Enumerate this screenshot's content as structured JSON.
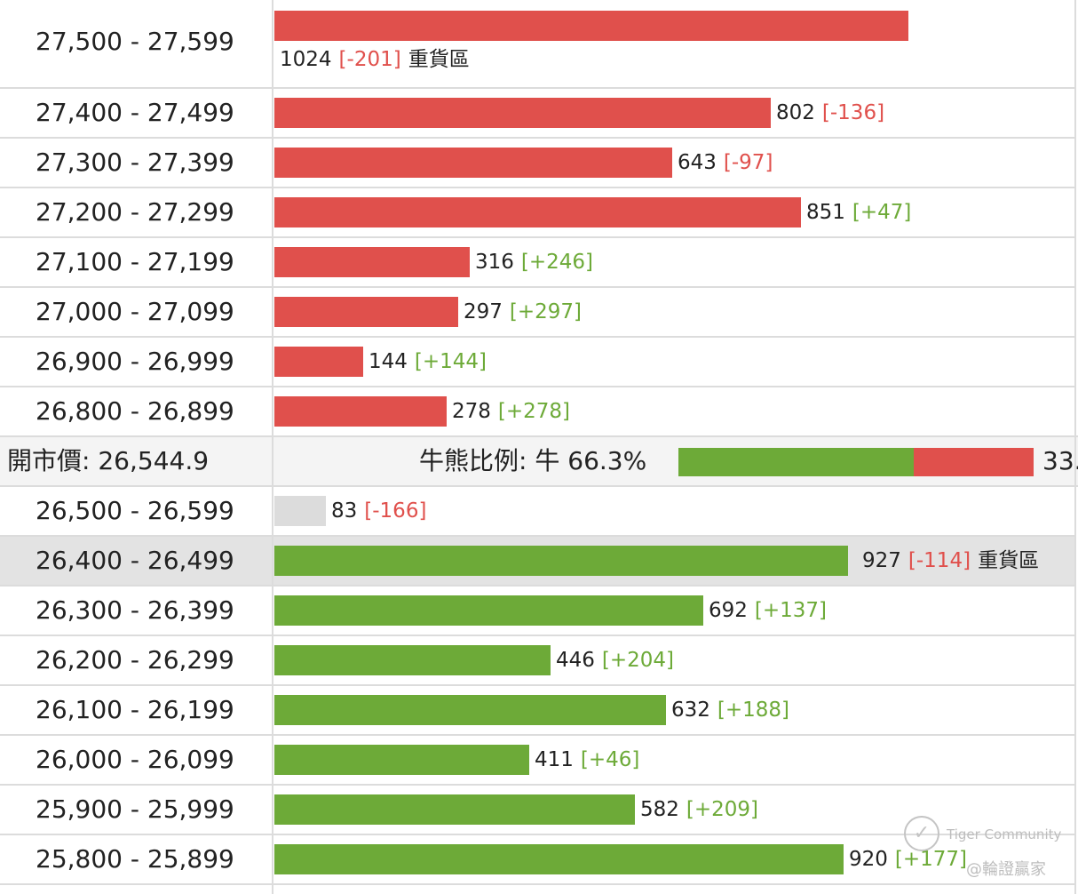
{
  "chart_data": {
    "type": "bar",
    "orientation": "horizontal",
    "upper_rows": [
      {
        "range": "27,500 - 27,599",
        "count": 1024,
        "change": "[-201]",
        "change_sign": "neg",
        "tag": "重貨區"
      },
      {
        "range": "27,400 - 27,499",
        "count": 802,
        "change": "[-136]",
        "change_sign": "neg",
        "tag": ""
      },
      {
        "range": "27,300 - 27,399",
        "count": 643,
        "change": "[-97]",
        "change_sign": "neg",
        "tag": ""
      },
      {
        "range": "27,200 - 27,299",
        "count": 851,
        "change": "[+47]",
        "change_sign": "pos",
        "tag": ""
      },
      {
        "range": "27,100 - 27,199",
        "count": 316,
        "change": "[+246]",
        "change_sign": "pos",
        "tag": ""
      },
      {
        "range": "27,000 - 27,099",
        "count": 297,
        "change": "[+297]",
        "change_sign": "pos",
        "tag": ""
      },
      {
        "range": "26,900 - 26,999",
        "count": 144,
        "change": "[+144]",
        "change_sign": "pos",
        "tag": ""
      },
      {
        "range": "26,800 - 26,899",
        "count": 278,
        "change": "[+278]",
        "change_sign": "pos",
        "tag": ""
      }
    ],
    "lower_rows": [
      {
        "range": "26,500 - 26,599",
        "count": 83,
        "change": "[-166]",
        "change_sign": "neg",
        "tag": "",
        "color": "gray"
      },
      {
        "range": "26,400 - 26,499",
        "count": 927,
        "change": "[-114]",
        "change_sign": "neg",
        "tag": "重貨區",
        "highlight": true
      },
      {
        "range": "26,300 - 26,399",
        "count": 692,
        "change": "[+137]",
        "change_sign": "pos",
        "tag": ""
      },
      {
        "range": "26,200 - 26,299",
        "count": 446,
        "change": "[+204]",
        "change_sign": "pos",
        "tag": ""
      },
      {
        "range": "26,100 - 26,199",
        "count": 632,
        "change": "[+188]",
        "change_sign": "pos",
        "tag": ""
      },
      {
        "range": "26,000 - 26,099",
        "count": 411,
        "change": "[+46]",
        "change_sign": "pos",
        "tag": ""
      },
      {
        "range": "25,900 - 25,999",
        "count": 582,
        "change": "[+209]",
        "change_sign": "pos",
        "tag": ""
      },
      {
        "range": "25,800 - 25,899",
        "count": 920,
        "change": "[+177]",
        "change_sign": "pos",
        "tag": ""
      }
    ],
    "xlim": [
      0,
      1024
    ],
    "grid": false
  },
  "summary": {
    "open_price_label": "開市價:",
    "open_price": "26,544.9",
    "ratio_label": "牛熊比例:",
    "bull_prefix": "牛",
    "bull_pct": 66.3,
    "bull_text": "66.3%",
    "bear_text": "33."
  },
  "colors": {
    "bear": "#e0504c",
    "bull": "#6daa38",
    "neutral": "#dcdcdc",
    "negative_change": "#e0504c",
    "positive_change": "#6daa38"
  },
  "watermark": {
    "brand": "Tiger Community",
    "handle": "@輪證贏家"
  }
}
